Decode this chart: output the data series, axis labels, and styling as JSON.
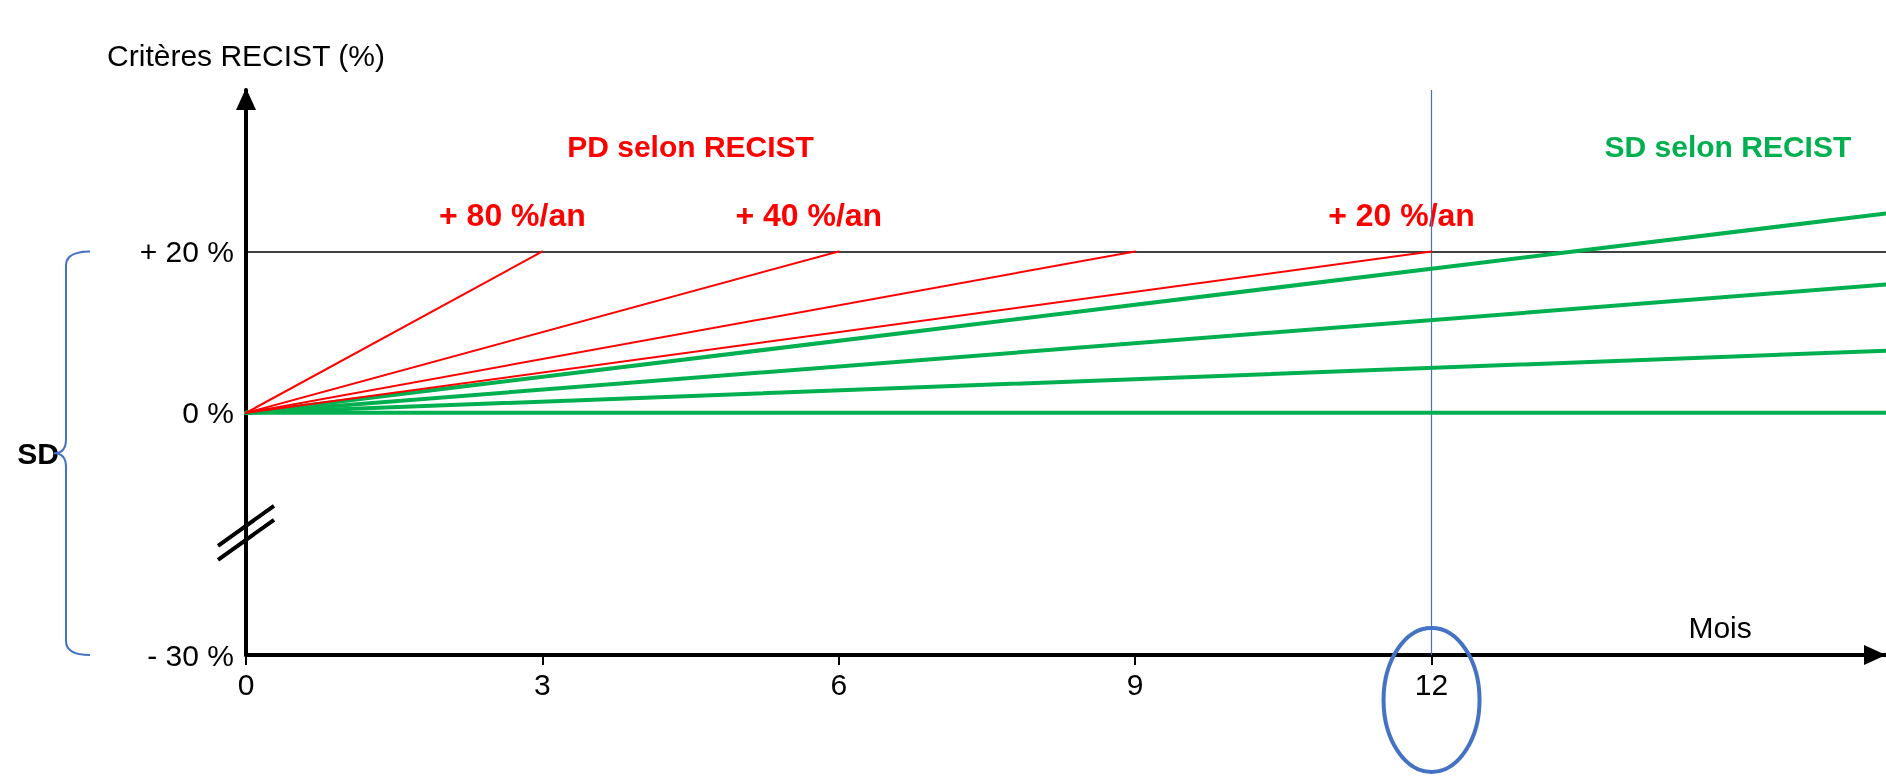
{
  "chart_data": {
    "type": "line",
    "ylabel": "Critères RECIST (%)",
    "xlabel": "Mois",
    "xlim": [
      0,
      16.6
    ],
    "xticks": [
      0,
      3,
      6,
      9,
      12
    ],
    "ylim": [
      -30,
      40
    ],
    "yticks": [
      {
        "value": -30,
        "label": "- 30 %"
      },
      {
        "value": 0,
        "label": "0 %"
      },
      {
        "value": 20,
        "label": "+ 20 %"
      }
    ],
    "series": [
      {
        "color": "#ff0000",
        "x": [
          0,
          3
        ],
        "values": [
          0,
          20
        ]
      },
      {
        "color": "#ff0000",
        "x": [
          0,
          6
        ],
        "values": [
          0,
          20
        ]
      },
      {
        "color": "#ff0000",
        "x": [
          0,
          9
        ],
        "values": [
          0,
          20
        ]
      },
      {
        "color": "#ff0000",
        "x": [
          0,
          12
        ],
        "values": [
          0,
          20
        ]
      },
      {
        "color": "#00b050",
        "x": [
          0,
          16.6
        ],
        "values": [
          0,
          24.7
        ]
      },
      {
        "color": "#00b050",
        "x": [
          0,
          16.6
        ],
        "values": [
          0,
          15.9
        ]
      },
      {
        "color": "#00b050",
        "x": [
          0,
          16.6
        ],
        "values": [
          0,
          7.7
        ]
      },
      {
        "color": "#00b050",
        "x": [
          0,
          16.6
        ],
        "values": [
          0,
          0
        ]
      }
    ],
    "ref_lines": [
      {
        "axis": "y",
        "value": 20,
        "color": "#000000",
        "line_style": "solid"
      },
      {
        "axis": "x",
        "value": 12,
        "color": "#4472c4",
        "line_style": "solid"
      }
    ],
    "annotations": [
      "PD selon RECIST",
      "SD selon RECIST",
      "SD",
      {
        "text": "+ 80 %/an",
        "x": 3,
        "y": 20
      },
      {
        "text": "+ 40 %/an",
        "x": 6,
        "y": 20
      },
      {
        "text": "+ 20 %/an",
        "x": 12,
        "y": 20
      }
    ],
    "grid": false,
    "marker": "none"
  }
}
